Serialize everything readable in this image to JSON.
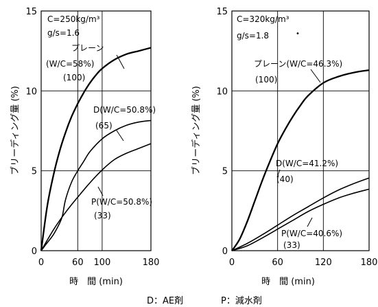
{
  "chart_data": [
    {
      "type": "line",
      "xlabel": "時　間 (min)",
      "ylabel": "ブリーディング量 (%)",
      "xlim": [
        0,
        180
      ],
      "ylim": [
        0,
        15
      ],
      "x_ticks": [
        "0",
        "60",
        "100",
        "180"
      ],
      "y_ticks": [
        "0",
        "5",
        "10",
        "15"
      ],
      "grid": true,
      "conditions": [
        "C=250kg/m³",
        "g/s=1.6"
      ],
      "series": [
        {
          "name": "プレーン (W/C=58%) (100)",
          "x": [
            0,
            10,
            20,
            30,
            40,
            50,
            60,
            70,
            80,
            90,
            100,
            120,
            140,
            160,
            180
          ],
          "values": [
            0,
            2.8,
            4.7,
            6.2,
            7.4,
            8.4,
            9.2,
            9.9,
            10.5,
            11.0,
            11.4,
            11.95,
            12.3,
            12.5,
            12.7
          ]
        },
        {
          "name": "D (W/C=50.8%) (65)",
          "x": [
            0,
            10,
            20,
            30,
            35,
            40,
            50,
            60,
            70,
            80,
            100,
            120,
            140,
            160,
            180
          ],
          "values": [
            0,
            0.5,
            1.0,
            1.7,
            2.2,
            3.2,
            4.3,
            5.0,
            5.6,
            6.2,
            7.0,
            7.5,
            7.85,
            8.05,
            8.15
          ]
        },
        {
          "name": "P (W/C=50.8%) (33)",
          "x": [
            0,
            20,
            40,
            60,
            80,
            100,
            120,
            140,
            160,
            180
          ],
          "values": [
            0,
            1.3,
            2.4,
            3.35,
            4.25,
            5.05,
            5.7,
            6.1,
            6.4,
            6.7
          ]
        }
      ],
      "labels": [
        {
          "text": "C=250kg/m³",
          "italic_prefix": "C"
        },
        {
          "text": "g/s=1.6"
        },
        {
          "text": "プレーン"
        },
        {
          "text": "(W/C=58%)"
        },
        {
          "text": "(100)"
        },
        {
          "text": "D(W/C=50.8%)"
        },
        {
          "text": "(65)"
        },
        {
          "text": "P(W/C=50.8%)"
        },
        {
          "text": "(33)"
        }
      ]
    },
    {
      "type": "line",
      "xlabel": "時　間 (min)",
      "ylabel": "ブリーディング量 (%)",
      "xlim": [
        0,
        180
      ],
      "ylim": [
        0,
        15
      ],
      "x_ticks": [
        "0",
        "60",
        "120",
        "180"
      ],
      "y_ticks": [
        "0",
        "5",
        "10",
        "15"
      ],
      "grid": true,
      "conditions": [
        "C=320kg/m³",
        "g/s=1.8"
      ],
      "series": [
        {
          "name": "プレーン (W/C=46.3%) (100)",
          "x": [
            0,
            10,
            20,
            30,
            40,
            50,
            60,
            70,
            80,
            90,
            100,
            120,
            140,
            160,
            180
          ],
          "values": [
            0,
            0.7,
            1.8,
            3.1,
            4.4,
            5.6,
            6.7,
            7.6,
            8.4,
            9.1,
            9.7,
            10.5,
            10.9,
            11.15,
            11.3
          ]
        },
        {
          "name": "D (W/C=41.2%) (40)",
          "x": [
            0,
            20,
            40,
            60,
            80,
            100,
            120,
            140,
            160,
            180
          ],
          "values": [
            0,
            0.45,
            1.0,
            1.6,
            2.2,
            2.75,
            3.3,
            3.8,
            4.2,
            4.55
          ]
        },
        {
          "name": "P (W/C=40.6%) (33)",
          "x": [
            0,
            20,
            40,
            60,
            80,
            100,
            120,
            140,
            160,
            180
          ],
          "values": [
            0,
            0.3,
            0.8,
            1.35,
            1.9,
            2.45,
            2.9,
            3.3,
            3.6,
            3.85
          ]
        }
      ],
      "labels": [
        {
          "text": "C=320kg/m³"
        },
        {
          "text": "g/s=1.8"
        },
        {
          "text": "プレーン(W/C=46.3%)"
        },
        {
          "text": "(100)"
        },
        {
          "text": "D(W/C=41.2%)"
        },
        {
          "text": "(40)"
        },
        {
          "text": "P(W/C=40.6%)"
        },
        {
          "text": "(33)"
        }
      ]
    }
  ],
  "caption": {
    "d": "D：AE剤",
    "p": "P：減水剤"
  }
}
